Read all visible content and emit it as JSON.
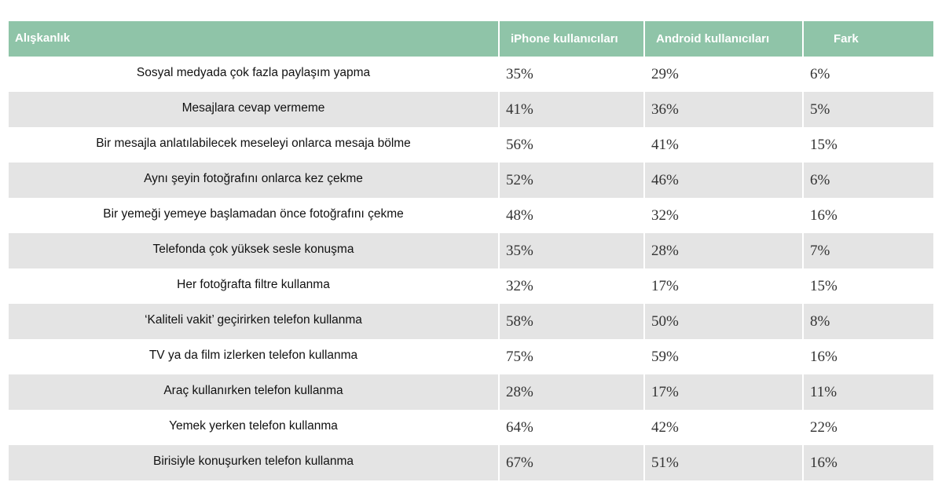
{
  "chart_data": {
    "type": "table",
    "columns": [
      "Alışkanlık",
      "iPhone kullanıcıları",
      "Android kullanıcıları",
      "Fark"
    ],
    "rows": [
      [
        "Sosyal medyada çok fazla paylaşım yapma",
        "35%",
        "29%",
        "6%"
      ],
      [
        "Mesajlara cevap vermeme",
        "41%",
        "36%",
        "5%"
      ],
      [
        "Bir mesajla anlatılabilecek meseleyi onlarca mesaja bölme",
        "56%",
        "41%",
        "15%"
      ],
      [
        "Aynı şeyin fotoğrafını onlarca kez çekme",
        "52%",
        "46%",
        "6%"
      ],
      [
        "Bir yemeği yemeye başlamadan önce fotoğrafını çekme",
        "48%",
        "32%",
        "16%"
      ],
      [
        "Telefonda çok yüksek sesle konuşma",
        "35%",
        "28%",
        "7%"
      ],
      [
        "Her fotoğrafta filtre kullanma",
        "32%",
        "17%",
        "15%"
      ],
      [
        "‘Kaliteli vakit’ geçirirken telefon kullanma",
        "58%",
        "50%",
        "8%"
      ],
      [
        "TV ya da film izlerken telefon kullanma",
        "75%",
        "59%",
        "16%"
      ],
      [
        "Araç kullanırken telefon kullanma",
        "28%",
        "17%",
        "11%"
      ],
      [
        "Yemek yerken telefon kullanma",
        "64%",
        "42%",
        "22%"
      ],
      [
        "Birisiyle konuşurken telefon kullanma",
        "67%",
        "51%",
        "16%"
      ]
    ],
    "colors": {
      "header_bg": "#8fc4a8",
      "header_text": "#ffffff",
      "stripe_bg": "#e4e4e4"
    }
  }
}
